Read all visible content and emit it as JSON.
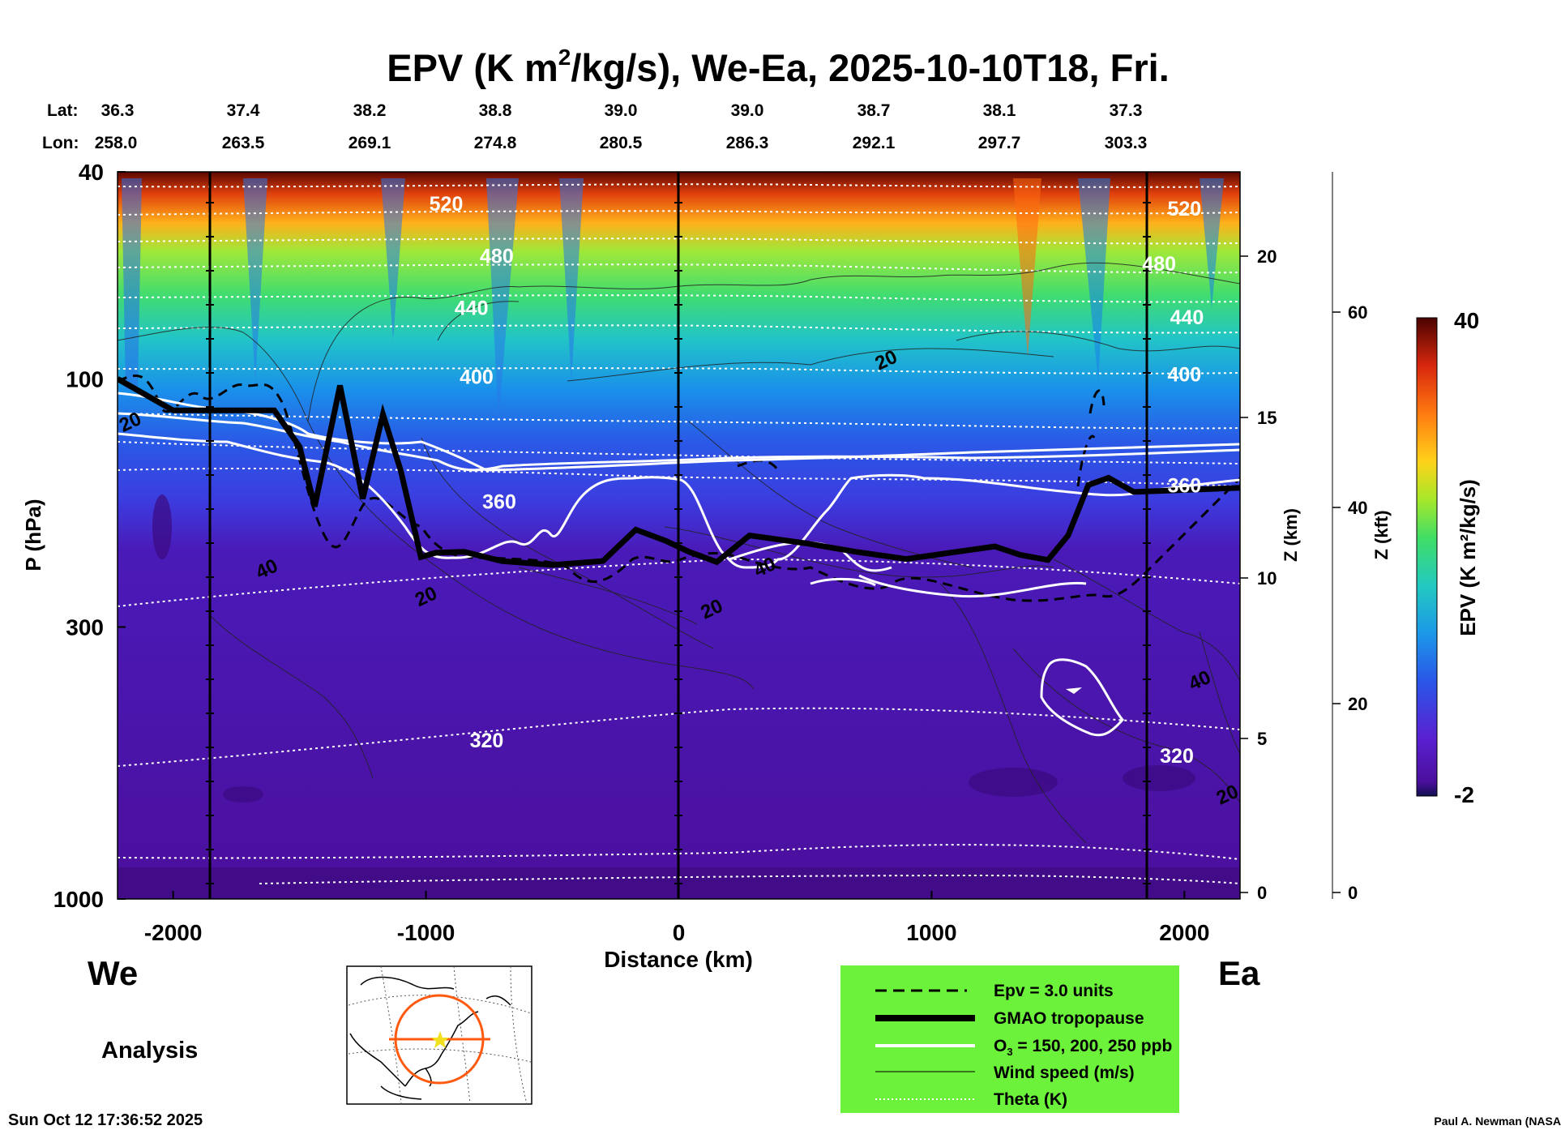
{
  "chart_data": {
    "type": "heatmap",
    "title_main": "EPV (K m",
    "title_sup": "2",
    "title_rest": "/kg/s), We-Ea, 2025-10-10T18, Fri.",
    "lat_label": "Lat:",
    "lon_label": "Lon:",
    "lat_values": [
      "36.3",
      "37.4",
      "38.2",
      "38.8",
      "39.0",
      "39.0",
      "38.7",
      "38.1",
      "37.3"
    ],
    "lon_values": [
      "258.0",
      "263.5",
      "269.1",
      "274.8",
      "280.5",
      "286.3",
      "292.1",
      "297.7",
      "303.3"
    ],
    "xlabel": "Distance (km)",
    "ylabel": "P (hPa)",
    "x_ticks": [
      -2000,
      -1000,
      0,
      1000,
      2000
    ],
    "x_tick_labels": [
      "-2000",
      "-1000",
      "0",
      "1000",
      "2000"
    ],
    "xlim": [
      -2220,
      2220
    ],
    "y_ticks": [
      40,
      100,
      300,
      1000
    ],
    "y_tick_labels": [
      "40",
      "100",
      "300",
      "1000"
    ],
    "ylim": [
      1000,
      40
    ],
    "yscale": "log",
    "z_km_label": "Z (km)",
    "z_km_ticks": [
      "20",
      "15",
      "10",
      "5",
      "0"
    ],
    "z_kft_label": "Z (kft)",
    "z_kft_ticks": [
      "60",
      "40",
      "20",
      "0"
    ],
    "colorbar_label": "EPV (K m²/kg/s)",
    "colorbar_min": "-2",
    "colorbar_max": "40",
    "theta_labels": [
      {
        "value": "520",
        "x": -920,
        "p": 46
      },
      {
        "value": "520",
        "x": 2000,
        "p": 47
      },
      {
        "value": "480",
        "x": -720,
        "p": 58
      },
      {
        "value": "480",
        "x": 1900,
        "p": 60
      },
      {
        "value": "440",
        "x": -820,
        "p": 73
      },
      {
        "value": "440",
        "x": 2010,
        "p": 76
      },
      {
        "value": "400",
        "x": -800,
        "p": 99
      },
      {
        "value": "400",
        "x": 2000,
        "p": 98
      },
      {
        "value": "360",
        "x": -710,
        "p": 172
      },
      {
        "value": "360",
        "x": 2000,
        "p": 160
      },
      {
        "value": "320",
        "x": -760,
        "p": 495
      },
      {
        "value": "320",
        "x": 1970,
        "p": 530
      }
    ],
    "wind_labels": [
      {
        "value": "20",
        "x": -2170,
        "p": 121
      },
      {
        "value": "20",
        "x": 820,
        "p": 92
      },
      {
        "value": "40",
        "x": -1630,
        "p": 232
      },
      {
        "value": "20",
        "x": -1000,
        "p": 262
      },
      {
        "value": "40",
        "x": 340,
        "p": 230
      },
      {
        "value": "20",
        "x": 130,
        "p": 277
      },
      {
        "value": "40",
        "x": 2060,
        "p": 380
      },
      {
        "value": "20",
        "x": 2170,
        "p": 630
      }
    ],
    "theta_levels_K": [
      320,
      360,
      400,
      440,
      480,
      520
    ],
    "tropopause_hpa": [
      [
        -2220,
        100
      ],
      [
        -2000,
        115
      ],
      [
        -1800,
        115
      ],
      [
        -1600,
        115
      ],
      [
        -1500,
        135
      ],
      [
        -1440,
        176
      ],
      [
        -1340,
        103
      ],
      [
        -1250,
        170
      ],
      [
        -1170,
        117
      ],
      [
        -1100,
        150
      ],
      [
        -1020,
        220
      ],
      [
        -960,
        216
      ],
      [
        -850,
        215
      ],
      [
        -700,
        224
      ],
      [
        -500,
        228
      ],
      [
        -300,
        224
      ],
      [
        -170,
        195
      ],
      [
        -50,
        205
      ],
      [
        40,
        215
      ],
      [
        150,
        225
      ],
      [
        280,
        200
      ],
      [
        500,
        207
      ],
      [
        700,
        215
      ],
      [
        900,
        222
      ],
      [
        1100,
        215
      ],
      [
        1250,
        210
      ],
      [
        1350,
        218
      ],
      [
        1460,
        223
      ],
      [
        1540,
        200
      ],
      [
        1620,
        160
      ],
      [
        1700,
        155
      ],
      [
        1800,
        165
      ],
      [
        2220,
        162
      ]
    ]
  },
  "legend": {
    "items": [
      {
        "label": "Epv = 3.0 units",
        "style": "dashed"
      },
      {
        "label": "GMAO tropopause",
        "style": "thick"
      },
      {
        "label": "O = 150, 200, 250 ppb",
        "style": "white"
      },
      {
        "label": "Wind speed (m/s)",
        "style": "thin"
      },
      {
        "label": "Theta (K)",
        "style": "dotted"
      }
    ],
    "o3_sub": "3",
    "bg": "#6cf23a"
  },
  "side_labels": {
    "west": "We",
    "east": "Ea",
    "analysis": "Analysis"
  },
  "footer": {
    "timestamp": "Sun Oct 12 17:36:52 2025",
    "author": "Paul A. Newman (NASA"
  },
  "colors": {
    "epv_scale": [
      "#0b0b59",
      "#4b0f9d",
      "#5a1ccf",
      "#2a5be8",
      "#1c9ae8",
      "#20c9c0",
      "#38e06a",
      "#a8e82a",
      "#ffcf1a",
      "#ff7c10",
      "#e82b10",
      "#8a0a07",
      "#4a0300"
    ]
  }
}
